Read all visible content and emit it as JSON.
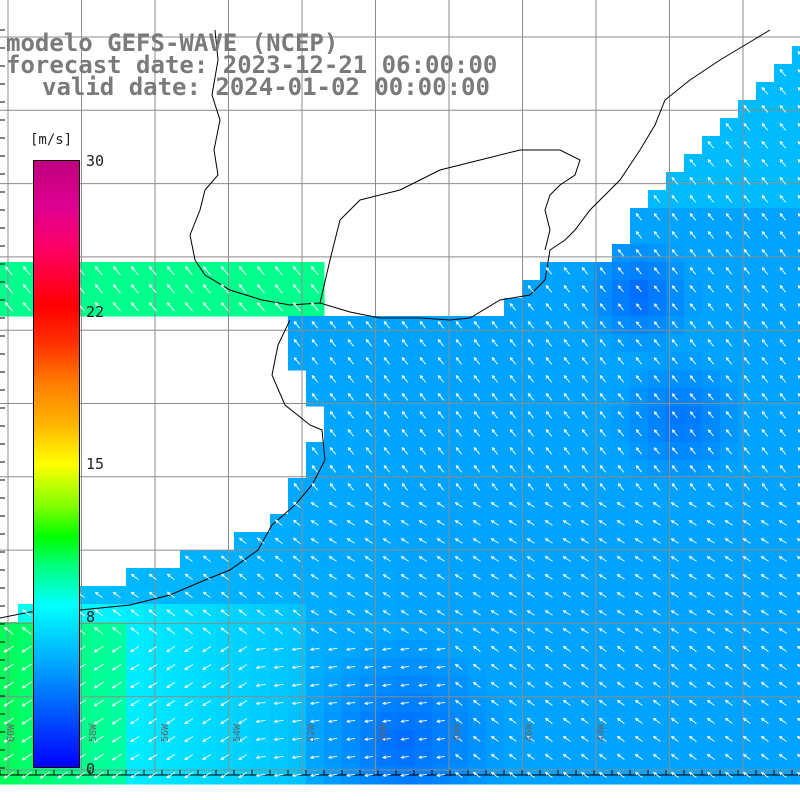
{
  "title": {
    "line1": "modelo GEFS-WAVE (NCEP)",
    "line2": "forecast date: 2023-12-21 06:00:00",
    "line3": "valid date: 2024-01-02 00:00:00"
  },
  "legend": {
    "unit": "[m/s]",
    "ticks": [
      "30",
      "22",
      "15",
      "8",
      "0"
    ],
    "tick_values": [
      30,
      22,
      15,
      8,
      0
    ],
    "colors": [
      "#0000ff",
      "#00b0ff",
      "#00ffff",
      "#00ff00",
      "#ffff00",
      "#ff8000",
      "#ff0000",
      "#c0007f"
    ]
  },
  "map": {
    "land_color": "#ffffff",
    "grid_color": "#8c8c8c",
    "coast_color": "#000000",
    "arrow_color": "#ffffff",
    "variable": "wind speed and direction",
    "lon_labels": [
      "60W",
      "58W",
      "56W",
      "54W",
      "52W",
      "50W",
      "48W",
      "46W",
      "44W"
    ]
  }
}
